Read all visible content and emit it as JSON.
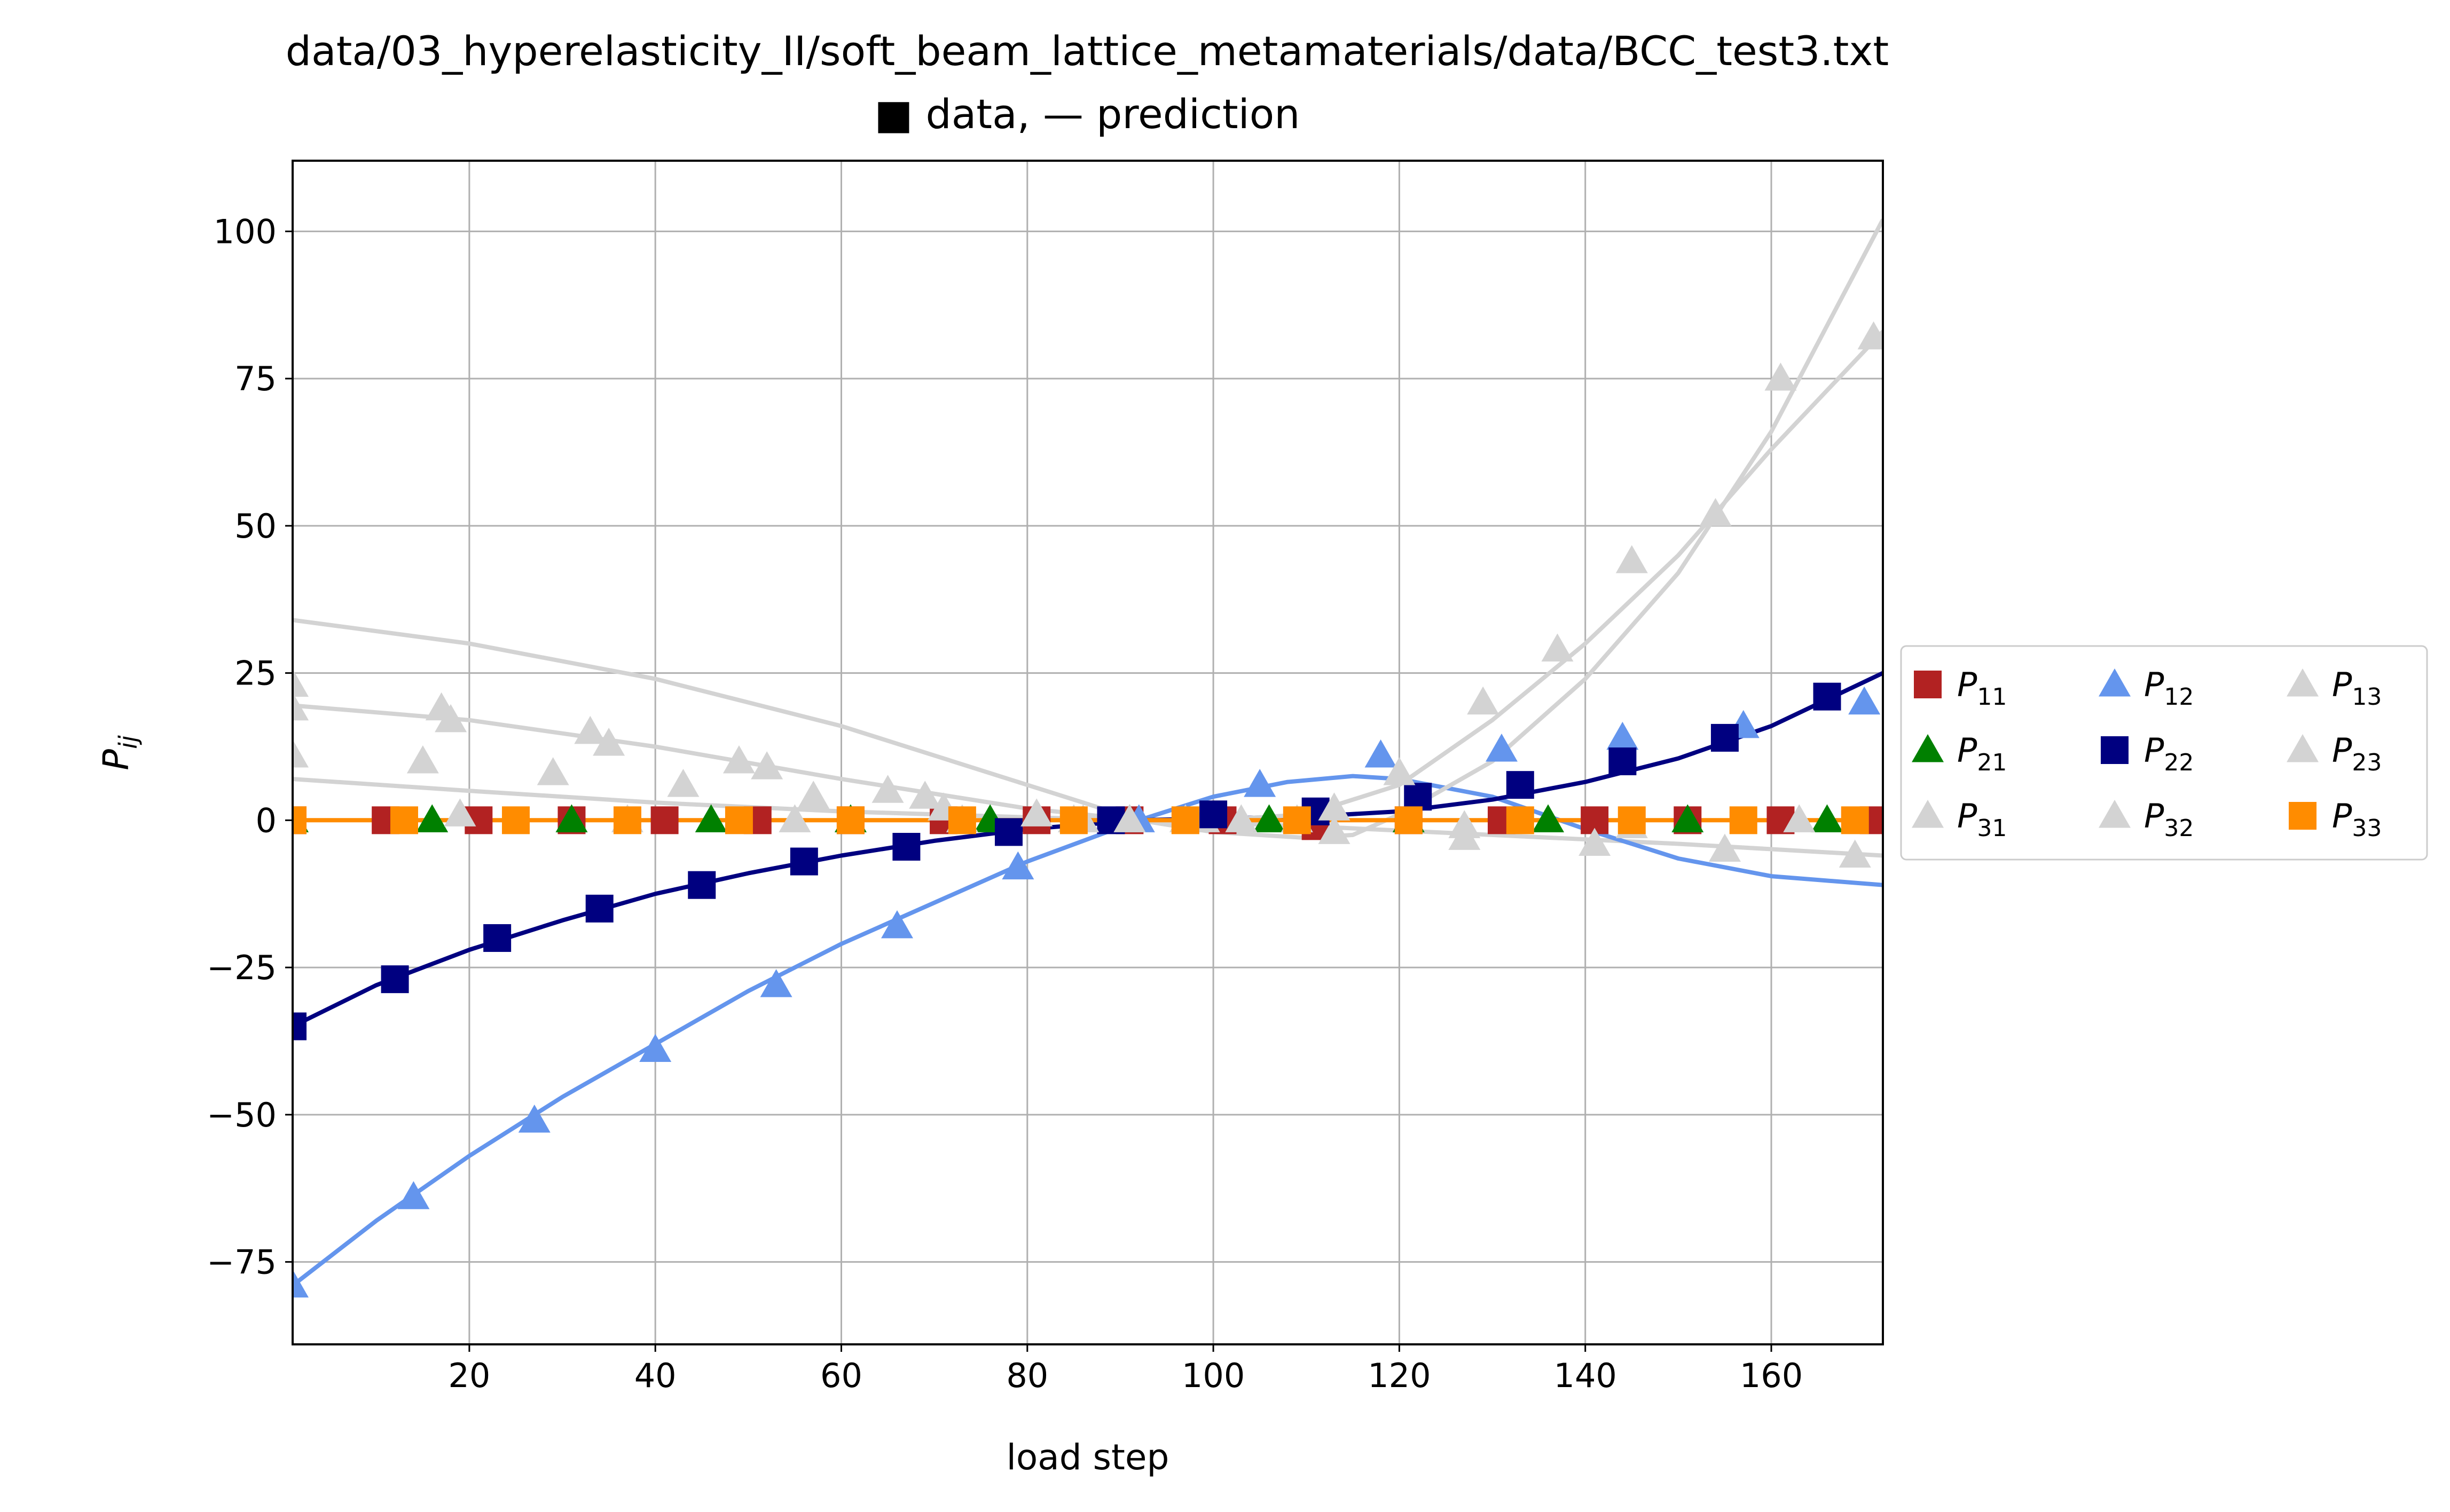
{
  "chart_data": {
    "type": "line",
    "title": "data/03_hyperelasticity_II/soft_beam_lattice_metamaterials/data/BCC_test3.txt",
    "subtitle": "■ data, — prediction",
    "xlabel": "load step",
    "ylabel": "P",
    "ylabel_sub": "ij",
    "xlim": [
      1,
      172
    ],
    "ylim": [
      -89,
      112
    ],
    "xticks": [
      20,
      40,
      60,
      80,
      100,
      120,
      140,
      160
    ],
    "yticks": [
      -75,
      -50,
      -25,
      0,
      25,
      50,
      75,
      100
    ],
    "xtick_labels": [
      "20",
      "40",
      "60",
      "80",
      "100",
      "120",
      "140",
      "160"
    ],
    "ytick_labels": [
      "−75",
      "−50",
      "−25",
      "0",
      "25",
      "50",
      "75",
      "100"
    ],
    "grid": true,
    "legend_position": "right",
    "series": [
      {
        "name": "P",
        "sub": "11",
        "color": "#b22222",
        "marker": "square",
        "draw_line": false,
        "points": [
          [
            1,
            0
          ],
          [
            11,
            0
          ],
          [
            21,
            0
          ],
          [
            31,
            0
          ],
          [
            41,
            0
          ],
          [
            51,
            0
          ],
          [
            61,
            0
          ],
          [
            71,
            0
          ],
          [
            81,
            0
          ],
          [
            91,
            0
          ],
          [
            101,
            0
          ],
          [
            111,
            -1
          ],
          [
            121,
            0
          ],
          [
            131,
            0
          ],
          [
            141,
            0
          ],
          [
            151,
            0
          ],
          [
            161,
            0
          ],
          [
            171,
            0
          ]
        ],
        "pred": []
      },
      {
        "name": "P",
        "sub": "21",
        "color": "#008000",
        "marker": "triangle",
        "draw_line": false,
        "points": [
          [
            1,
            0
          ],
          [
            16,
            0
          ],
          [
            31,
            0
          ],
          [
            46,
            0
          ],
          [
            61,
            0
          ],
          [
            76,
            0
          ],
          [
            91,
            0
          ],
          [
            106,
            0
          ],
          [
            121,
            0
          ],
          [
            136,
            0
          ],
          [
            151,
            0
          ],
          [
            166,
            0
          ]
        ],
        "pred": []
      },
      {
        "name": "P",
        "sub": "31",
        "color": "#d3d3d3",
        "marker": "triangle",
        "draw_line": true,
        "points": [
          [
            1,
            23
          ],
          [
            15,
            10
          ],
          [
            29,
            8
          ],
          [
            43,
            6
          ],
          [
            57,
            4
          ],
          [
            71,
            2
          ],
          [
            85,
            0
          ],
          [
            99,
            0
          ],
          [
            113,
            -2
          ],
          [
            127,
            -3
          ],
          [
            141,
            -4
          ],
          [
            155,
            -5
          ],
          [
            169,
            -6
          ]
        ],
        "pred": [
          [
            1,
            7
          ],
          [
            20,
            5
          ],
          [
            40,
            3
          ],
          [
            60,
            1.5
          ],
          [
            80,
            0.5
          ],
          [
            92,
            0
          ],
          [
            110,
            -1
          ],
          [
            130,
            -2.5
          ],
          [
            150,
            -4
          ],
          [
            172,
            -6
          ]
        ]
      },
      {
        "name": "P",
        "sub": "12",
        "color": "#6495ed",
        "marker": "triangle",
        "draw_line": true,
        "points": [
          [
            1,
            -79
          ],
          [
            14,
            -64
          ],
          [
            27,
            -51
          ],
          [
            40,
            -39
          ],
          [
            53,
            -28
          ],
          [
            66,
            -18
          ],
          [
            79,
            -8
          ],
          [
            92,
            0
          ],
          [
            105,
            6
          ],
          [
            118,
            11
          ],
          [
            131,
            12
          ],
          [
            144,
            14
          ],
          [
            157,
            16
          ],
          [
            170,
            20
          ]
        ],
        "pred": [
          [
            1,
            -79
          ],
          [
            10,
            -68
          ],
          [
            20,
            -57
          ],
          [
            30,
            -47
          ],
          [
            40,
            -38
          ],
          [
            50,
            -29
          ],
          [
            60,
            -21
          ],
          [
            70,
            -14
          ],
          [
            80,
            -7
          ],
          [
            92,
            0
          ],
          [
            100,
            4
          ],
          [
            108,
            6.5
          ],
          [
            115,
            7.5
          ],
          [
            120,
            7
          ],
          [
            130,
            4
          ],
          [
            140,
            -1.5
          ],
          [
            150,
            -6.5
          ],
          [
            160,
            -9.5
          ],
          [
            172,
            -11
          ]
        ]
      },
      {
        "name": "P",
        "sub": "22",
        "color": "#000080",
        "marker": "square",
        "draw_line": true,
        "points": [
          [
            1,
            -35
          ],
          [
            12,
            -27
          ],
          [
            23,
            -20
          ],
          [
            34,
            -15
          ],
          [
            45,
            -11
          ],
          [
            56,
            -7
          ],
          [
            67,
            -4.5
          ],
          [
            78,
            -2
          ],
          [
            89,
            0
          ],
          [
            100,
            1
          ],
          [
            111,
            1.5
          ],
          [
            122,
            4
          ],
          [
            133,
            6
          ],
          [
            144,
            10
          ],
          [
            155,
            14
          ],
          [
            166,
            21
          ]
        ],
        "pred": [
          [
            1,
            -35
          ],
          [
            10,
            -28
          ],
          [
            20,
            -22
          ],
          [
            30,
            -17
          ],
          [
            40,
            -12.5
          ],
          [
            50,
            -9
          ],
          [
            60,
            -6
          ],
          [
            70,
            -3.5
          ],
          [
            80,
            -1.5
          ],
          [
            92,
            0
          ],
          [
            100,
            0.3
          ],
          [
            110,
            0.6
          ],
          [
            120,
            1.5
          ],
          [
            130,
            3.5
          ],
          [
            140,
            6.5
          ],
          [
            150,
            10.5
          ],
          [
            160,
            16
          ],
          [
            172,
            25
          ]
        ]
      },
      {
        "name": "P",
        "sub": "32",
        "color": "#d3d3d3",
        "marker": "triangle",
        "draw_line": true,
        "points": [
          [
            1,
            11
          ],
          [
            17,
            19
          ],
          [
            33,
            15
          ],
          [
            49,
            10
          ],
          [
            65,
            5
          ],
          [
            81,
            1
          ],
          [
            97,
            0
          ],
          [
            113,
            2
          ],
          [
            129,
            20
          ],
          [
            145,
            44
          ],
          [
            161,
            75
          ]
        ],
        "pred": [
          [
            1,
            19.5
          ],
          [
            20,
            17
          ],
          [
            40,
            12.5
          ],
          [
            60,
            7
          ],
          [
            80,
            2
          ],
          [
            92,
            0
          ],
          [
            100,
            0
          ],
          [
            110,
            1
          ],
          [
            120,
            6
          ],
          [
            130,
            17
          ],
          [
            140,
            30
          ],
          [
            150,
            45
          ],
          [
            160,
            63
          ],
          [
            172,
            83
          ]
        ]
      },
      {
        "name": "P",
        "sub": "13",
        "color": "#d3d3d3",
        "marker": "triangle",
        "draw_line": true,
        "points": [
          [
            1,
            19
          ],
          [
            18,
            17
          ],
          [
            35,
            13
          ],
          [
            52,
            9
          ],
          [
            69,
            4
          ],
          [
            86,
            0
          ],
          [
            103,
            0
          ],
          [
            120,
            8
          ],
          [
            137,
            29
          ],
          [
            154,
            52
          ],
          [
            171,
            82
          ]
        ],
        "pred": [
          [
            1,
            34
          ],
          [
            20,
            30
          ],
          [
            40,
            24
          ],
          [
            60,
            16
          ],
          [
            80,
            6
          ],
          [
            92,
            0
          ],
          [
            100,
            -2
          ],
          [
            110,
            -3
          ],
          [
            115,
            -2.5
          ],
          [
            120,
            1
          ],
          [
            130,
            10
          ],
          [
            140,
            24
          ],
          [
            150,
            42
          ],
          [
            160,
            66
          ],
          [
            172,
            102
          ]
        ]
      },
      {
        "name": "P",
        "sub": "23",
        "color": "#d3d3d3",
        "marker": "triangle",
        "draw_line": false,
        "points": [
          [
            1,
            19
          ],
          [
            19,
            1
          ],
          [
            37,
            0
          ],
          [
            55,
            0
          ],
          [
            73,
            0
          ],
          [
            91,
            0
          ],
          [
            109,
            0
          ],
          [
            127,
            -1
          ],
          [
            145,
            -1
          ],
          [
            163,
            0
          ]
        ],
        "pred": []
      },
      {
        "name": "P",
        "sub": "33",
        "color": "#ff8c00",
        "marker": "square",
        "draw_line": true,
        "points": [
          [
            1,
            0
          ],
          [
            13,
            0
          ],
          [
            25,
            0
          ],
          [
            37,
            0
          ],
          [
            49,
            0
          ],
          [
            61,
            0
          ],
          [
            73,
            0
          ],
          [
            85,
            0
          ],
          [
            97,
            0
          ],
          [
            109,
            0
          ],
          [
            121,
            0
          ],
          [
            133,
            0
          ],
          [
            145,
            0
          ],
          [
            157,
            0
          ],
          [
            169,
            0
          ]
        ],
        "pred": [
          [
            1,
            0
          ],
          [
            172,
            0
          ]
        ]
      }
    ],
    "legend_order": [
      [
        0,
        3,
        6
      ],
      [
        1,
        4,
        7
      ],
      [
        2,
        5,
        8
      ]
    ]
  }
}
